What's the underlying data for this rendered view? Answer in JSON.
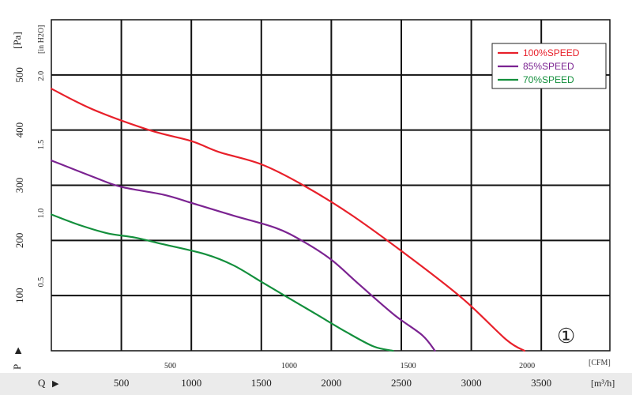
{
  "chart_data": {
    "type": "line",
    "x_primary": {
      "unit": "[m³/h]",
      "symbol": "Q",
      "arrow": "▶",
      "ticks": [
        "500",
        "1000",
        "1500",
        "2000",
        "2500",
        "3000",
        "3500"
      ],
      "tick_values": [
        500,
        1000,
        1500,
        2000,
        2500,
        3000,
        3500
      ],
      "range": [
        0,
        3990
      ]
    },
    "x_secondary": {
      "unit": "[CFM]",
      "ticks": [
        "500",
        "1000",
        "1500",
        "2000"
      ],
      "tick_values": [
        500,
        1000,
        1500,
        2000
      ]
    },
    "y_primary": {
      "unit": "[Pa]",
      "symbol": "P",
      "arrow": "▶",
      "ticks": [
        "100",
        "200",
        "300",
        "400",
        "500"
      ],
      "tick_values": [
        100,
        200,
        300,
        400,
        500
      ],
      "range": [
        0,
        600
      ]
    },
    "y_secondary": {
      "unit": "[in H2O]",
      "ticks": [
        "0.5",
        "1.0",
        "1.5",
        "2.0"
      ],
      "tick_values": [
        0.5,
        1.0,
        1.5,
        2.0
      ]
    },
    "grid": true,
    "legend_position": "top-right",
    "annotation": "①",
    "series": [
      {
        "name": "100%SPEED",
        "color": "#e8202a",
        "points": [
          [
            0,
            475
          ],
          [
            300,
            437
          ],
          [
            700,
            400
          ],
          [
            1000,
            380
          ],
          [
            1200,
            360
          ],
          [
            1500,
            338
          ],
          [
            1800,
            300
          ],
          [
            2150,
            245
          ],
          [
            2600,
            162
          ],
          [
            2950,
            92
          ],
          [
            3250,
            20
          ],
          [
            3380,
            0
          ]
        ]
      },
      {
        "name": "85%SPEED",
        "color": "#7b2391",
        "points": [
          [
            0,
            345
          ],
          [
            300,
            315
          ],
          [
            500,
            297
          ],
          [
            800,
            283
          ],
          [
            1000,
            268
          ],
          [
            1300,
            245
          ],
          [
            1600,
            223
          ],
          [
            1800,
            198
          ],
          [
            2000,
            165
          ],
          [
            2200,
            120
          ],
          [
            2450,
            65
          ],
          [
            2650,
            28
          ],
          [
            2740,
            0
          ]
        ]
      },
      {
        "name": "70%SPEED",
        "color": "#138f3c",
        "points": [
          [
            0,
            247
          ],
          [
            200,
            228
          ],
          [
            400,
            213
          ],
          [
            600,
            205
          ],
          [
            800,
            193
          ],
          [
            1100,
            175
          ],
          [
            1300,
            155
          ],
          [
            1500,
            125
          ],
          [
            1700,
            95
          ],
          [
            1900,
            65
          ],
          [
            2100,
            35
          ],
          [
            2300,
            8
          ],
          [
            2440,
            0
          ]
        ]
      }
    ]
  }
}
